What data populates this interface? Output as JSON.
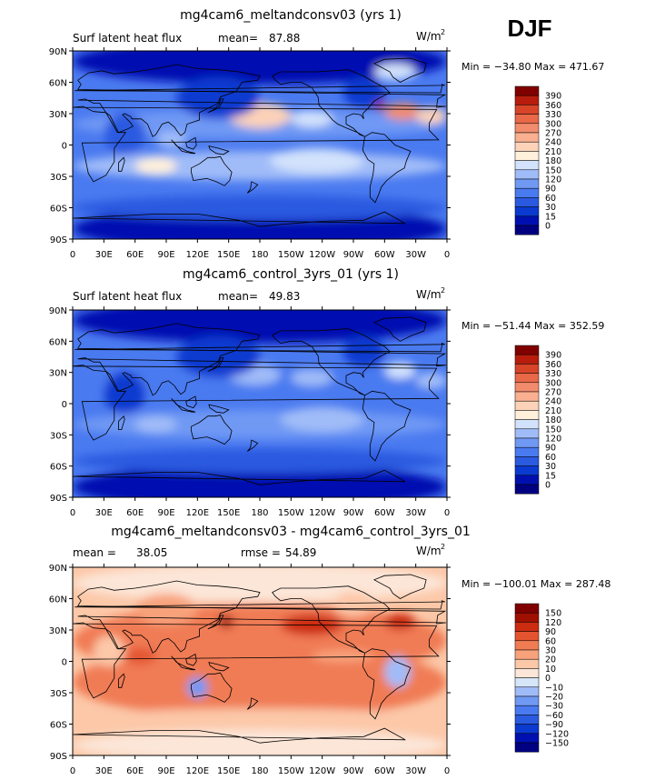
{
  "season": "DJF",
  "colors": {
    "landOutline": "#000000",
    "abs_scale": [
      "#000080",
      "#0010b0",
      "#0a3ad0",
      "#2a5ae0",
      "#4a7af0",
      "#7099f4",
      "#a0bcf8",
      "#d2e2fc",
      "#fff0dc",
      "#fcd2b8",
      "#fab090",
      "#f28c6c",
      "#e86848",
      "#d84428",
      "#b81c0c",
      "#800000"
    ],
    "diff_scale": [
      "#000080",
      "#0010b0",
      "#0a3ad0",
      "#2a5ae0",
      "#4a7af0",
      "#7099f4",
      "#a0bcf8",
      "#d6e6f8",
      "#fce6d8",
      "#fcc8a8",
      "#f8a27c",
      "#f07c54",
      "#e45430",
      "#cc2c10",
      "#a01000",
      "#800000"
    ]
  },
  "chart_data": [
    {
      "type": "heatmap",
      "title": "mg4cam6_meltandconsv03 (yrs 1)",
      "left_label": "Surf latent heat flux",
      "mean_label": "mean=",
      "mean_value": "87.88",
      "units_base": "W/m",
      "units_exp": "2",
      "minmax": "Min = −34.80 Max = 471.67",
      "y_ticks": [
        "90N",
        "60N",
        "30N",
        "0",
        "30S",
        "60S",
        "90S"
      ],
      "x_ticks": [
        "0",
        "30E",
        "60E",
        "90E",
        "120E",
        "150E",
        "180",
        "150W",
        "120W",
        "90W",
        "60W",
        "30W",
        "0"
      ],
      "colorbar_labels": [
        "390",
        "360",
        "330",
        "300",
        "270",
        "240",
        "210",
        "180",
        "150",
        "120",
        "90",
        "60",
        "30",
        "15",
        "0"
      ],
      "color_scale": "abs",
      "data_summary": "Latent heat flux mostly 30-150 W/m2 over oceans; maxima 300-390 over Kuroshio and Gulf Stream, 180-240 in subtropics"
    },
    {
      "type": "heatmap",
      "title": "mg4cam6_control_3yrs_01 (yrs 1)",
      "left_label": "Surf latent heat flux",
      "mean_label": "mean=",
      "mean_value": "49.83",
      "units_base": "W/m",
      "units_exp": "2",
      "minmax": "Min = −51.44 Max = 352.59",
      "y_ticks": [
        "90N",
        "60N",
        "30N",
        "0",
        "30S",
        "60S",
        "90S"
      ],
      "x_ticks": [
        "0",
        "30E",
        "60E",
        "90E",
        "120E",
        "150E",
        "180",
        "150W",
        "120W",
        "90W",
        "60W",
        "30W",
        "0"
      ],
      "colorbar_labels": [
        "390",
        "360",
        "330",
        "300",
        "270",
        "240",
        "210",
        "180",
        "150",
        "120",
        "90",
        "60",
        "30",
        "15",
        "0"
      ],
      "color_scale": "abs",
      "data_summary": "Weaker fluxes mostly 15-120 W/m2; maxima ~300 over Kuroshio, ~150-180 in subtropical oceans"
    },
    {
      "type": "heatmap",
      "title": "mg4cam6_meltandconsv03 - mg4cam6_control_3yrs_01",
      "left_label": "mean =",
      "mean_label": "",
      "mean_value": "38.05",
      "rmse_label": "rmse =",
      "rmse_value": "54.89",
      "units_base": "W/m",
      "units_exp": "2",
      "minmax": "Min = −100.01 Max = 287.48",
      "y_ticks": [
        "90N",
        "60N",
        "30N",
        "0",
        "30S",
        "60S",
        "90S"
      ],
      "x_ticks": [
        "0",
        "30E",
        "60E",
        "90E",
        "120E",
        "150E",
        "180",
        "150W",
        "120W",
        "90W",
        "60W",
        "30W",
        "0"
      ],
      "colorbar_labels": [
        "150",
        "120",
        "90",
        "60",
        "30",
        "20",
        "10",
        "0",
        "−10",
        "−20",
        "−30",
        "−60",
        "−90",
        "−120",
        "−150"
      ],
      "color_scale": "diff",
      "data_summary": "Positive differences 20-90 across most oceans, 90-150 over Kuroshio/Gulf Stream; small negatives over land and high latitudes"
    }
  ]
}
